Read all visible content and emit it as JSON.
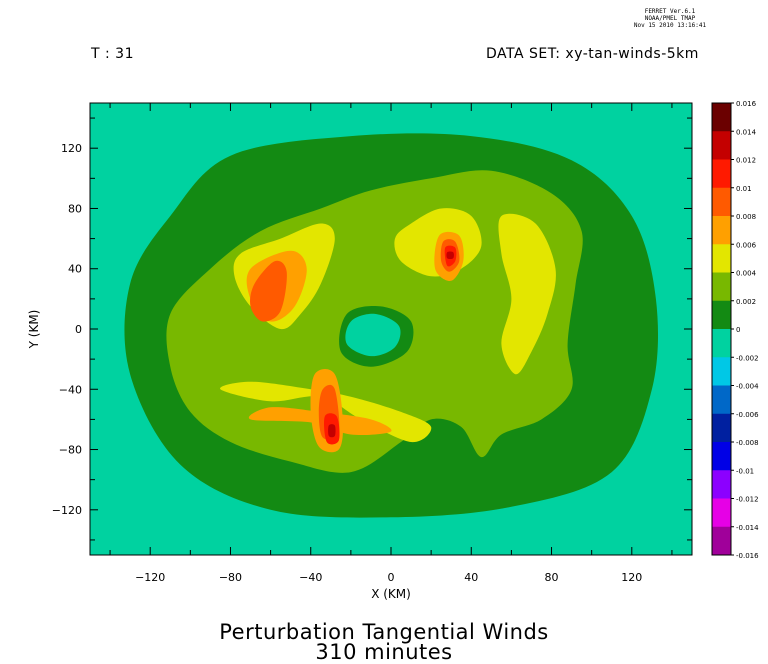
{
  "header": {
    "ferret_line1": "FERRET  Ver.6.1",
    "ferret_line2": "NOAA/PMEL TMAP",
    "ferret_line3": "Nov 15 2010 13:16:41",
    "time_label": "T : 31",
    "dataset_label": "DATA SET: xy-tan-winds-5km"
  },
  "title": {
    "line1": "Perturbation Tangential Winds",
    "line2": "310 minutes"
  },
  "chart_data": {
    "type": "heatmap",
    "xlabel": "X (KM)",
    "ylabel": "Y (KM)",
    "xlim": [
      -150,
      150
    ],
    "ylim": [
      -150,
      150
    ],
    "x_ticks": [
      -120,
      -80,
      -40,
      0,
      40,
      80,
      120
    ],
    "y_ticks": [
      120,
      80,
      40,
      0,
      -40,
      -80,
      -120
    ],
    "background_level": "-0.002 to 0",
    "colorbar": {
      "levels": [
        "0.016",
        "0.014",
        "0.012",
        "0.01",
        "0.008",
        "0.006",
        "0.004",
        "0.002",
        "0",
        "-0.002",
        "-0.004",
        "-0.006",
        "-0.008",
        "-0.01",
        "-0.012",
        "-0.014",
        "-0.016"
      ],
      "colors": [
        "#6b0000",
        "#c40000",
        "#ff1a00",
        "#ff5a00",
        "#ffa000",
        "#e3e600",
        "#78b800",
        "#138a13",
        "#00d2a0",
        "#00c8e6",
        "#0068c8",
        "#0020a0",
        "#0000e6",
        "#8c00ff",
        "#e600e6",
        "#a0009a",
        "#55004e"
      ]
    },
    "regions": [
      {
        "level": "0 to 0.002",
        "points": [
          [
            -110,
            75
          ],
          [
            -80,
            115
          ],
          [
            -20,
            128
          ],
          [
            40,
            128
          ],
          [
            90,
            112
          ],
          [
            120,
            75
          ],
          [
            132,
            20
          ],
          [
            130,
            -40
          ],
          [
            110,
            -95
          ],
          [
            60,
            -118
          ],
          [
            0,
            -125
          ],
          [
            -60,
            -120
          ],
          [
            -105,
            -90
          ],
          [
            -130,
            -30
          ],
          [
            -130,
            30
          ]
        ]
      },
      {
        "level": "0.002 to 0.004",
        "points": [
          [
            -110,
            10
          ],
          [
            -90,
            40
          ],
          [
            -65,
            65
          ],
          [
            -35,
            80
          ],
          [
            -10,
            92
          ],
          [
            20,
            100
          ],
          [
            50,
            105
          ],
          [
            80,
            90
          ],
          [
            95,
            65
          ],
          [
            92,
            30
          ],
          [
            88,
            -10
          ],
          [
            90,
            -40
          ],
          [
            75,
            -60
          ],
          [
            55,
            -70
          ],
          [
            45,
            -85
          ],
          [
            35,
            -65
          ],
          [
            20,
            -60
          ],
          [
            5,
            -75
          ],
          [
            -20,
            -95
          ],
          [
            -50,
            -88
          ],
          [
            -80,
            -75
          ],
          [
            -100,
            -55
          ],
          [
            -110,
            -25
          ]
        ]
      },
      {
        "level": "0.004 to 0.006",
        "points": [
          [
            -75,
            50
          ],
          [
            -55,
            60
          ],
          [
            -35,
            70
          ],
          [
            -28,
            60
          ],
          [
            -35,
            30
          ],
          [
            -45,
            10
          ],
          [
            -55,
            0
          ],
          [
            -70,
            15
          ],
          [
            -78,
            35
          ]
        ]
      },
      {
        "level": "0.004 to 0.006",
        "points": [
          [
            -85,
            -40
          ],
          [
            -60,
            -48
          ],
          [
            -35,
            -45
          ],
          [
            -15,
            -60
          ],
          [
            10,
            -75
          ],
          [
            20,
            -65
          ],
          [
            5,
            -55
          ],
          [
            -20,
            -45
          ],
          [
            -40,
            -40
          ],
          [
            -70,
            -35
          ]
        ]
      },
      {
        "level": "0.004 to 0.006",
        "points": [
          [
            10,
            70
          ],
          [
            25,
            80
          ],
          [
            40,
            75
          ],
          [
            45,
            55
          ],
          [
            35,
            40
          ],
          [
            20,
            35
          ],
          [
            5,
            45
          ],
          [
            2,
            60
          ]
        ]
      },
      {
        "level": "0.004 to 0.006",
        "points": [
          [
            55,
            75
          ],
          [
            72,
            70
          ],
          [
            82,
            40
          ],
          [
            78,
            10
          ],
          [
            70,
            -15
          ],
          [
            62,
            -30
          ],
          [
            55,
            -10
          ],
          [
            60,
            20
          ],
          [
            55,
            50
          ]
        ]
      },
      {
        "level": "0.006 to 0.008",
        "points": [
          [
            -70,
            40
          ],
          [
            -50,
            52
          ],
          [
            -42,
            40
          ],
          [
            -48,
            15
          ],
          [
            -60,
            5
          ],
          [
            -70,
            20
          ]
        ]
      },
      {
        "level": "0.006 to 0.008",
        "points": [
          [
            -70,
            -60
          ],
          [
            -40,
            -62
          ],
          [
            -20,
            -70
          ],
          [
            0,
            -68
          ],
          [
            -10,
            -60
          ],
          [
            -35,
            -55
          ],
          [
            -60,
            -52
          ]
        ]
      },
      {
        "level": "0.006 to 0.008",
        "points": [
          [
            -38,
            -30
          ],
          [
            -28,
            -30
          ],
          [
            -24,
            -60
          ],
          [
            -26,
            -80
          ],
          [
            -36,
            -78
          ],
          [
            -40,
            -55
          ]
        ]
      },
      {
        "level": "0.006 to 0.008",
        "points": [
          [
            24,
            62
          ],
          [
            34,
            62
          ],
          [
            36,
            45
          ],
          [
            30,
            32
          ],
          [
            22,
            40
          ]
        ]
      },
      {
        "level": "0.008 to 0.01",
        "points": [
          [
            -68,
            30
          ],
          [
            -58,
            45
          ],
          [
            -52,
            38
          ],
          [
            -55,
            12
          ],
          [
            -64,
            5
          ],
          [
            -70,
            15
          ]
        ]
      },
      {
        "level": "0.008 to 0.01",
        "points": [
          [
            -34,
            -40
          ],
          [
            -28,
            -40
          ],
          [
            -26,
            -70
          ],
          [
            -34,
            -72
          ],
          [
            -36,
            -55
          ]
        ]
      },
      {
        "level": "0.008 to 0.01",
        "points": [
          [
            26,
            58
          ],
          [
            32,
            58
          ],
          [
            34,
            45
          ],
          [
            29,
            38
          ],
          [
            25,
            45
          ]
        ]
      },
      {
        "level": "0.01 to 0.012",
        "points": [
          [
            -33,
            -58
          ],
          [
            -27,
            -58
          ],
          [
            -26,
            -74
          ],
          [
            -32,
            -75
          ]
        ]
      },
      {
        "level": "0.01 to 0.012",
        "points": [
          [
            27,
            54
          ],
          [
            32,
            54
          ],
          [
            32,
            45
          ],
          [
            28,
            42
          ]
        ]
      },
      {
        "level": "0.012 to 0.014",
        "points": [
          [
            -31,
            -64
          ],
          [
            -28,
            -64
          ],
          [
            -28,
            -71
          ],
          [
            -31,
            -71
          ]
        ]
      },
      {
        "level": "0.012 to 0.014",
        "points": [
          [
            28,
            51
          ],
          [
            31,
            51
          ],
          [
            31,
            47
          ],
          [
            28,
            47
          ]
        ]
      },
      {
        "level": "0 to 0.002",
        "points": [
          [
            -22,
            10
          ],
          [
            -5,
            15
          ],
          [
            10,
            5
          ],
          [
            8,
            -15
          ],
          [
            -10,
            -25
          ],
          [
            -25,
            -15
          ]
        ]
      },
      {
        "level": "-0.002 to 0",
        "points": [
          [
            -20,
            5
          ],
          [
            -8,
            10
          ],
          [
            4,
            2
          ],
          [
            2,
            -12
          ],
          [
            -10,
            -18
          ],
          [
            -22,
            -10
          ]
        ]
      }
    ]
  }
}
